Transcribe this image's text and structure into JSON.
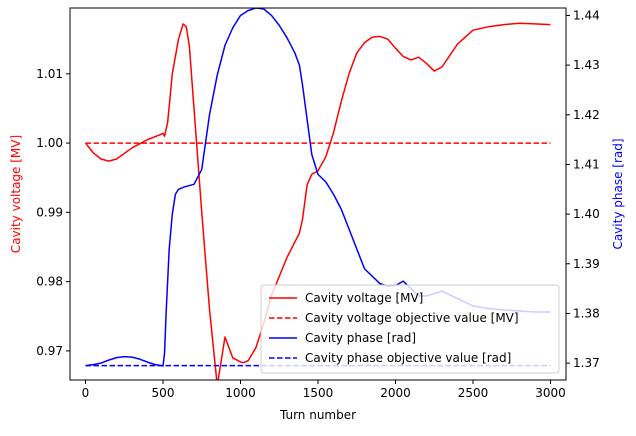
{
  "chart_data": {
    "type": "line",
    "xlabel": "Turn number",
    "ylabel_left": "Cavity voltage [MV]",
    "ylabel_right": "Cavity phase [rad]",
    "xlim": [
      -100,
      3100
    ],
    "ylim_left": [
      0.9658,
      1.0195
    ],
    "ylim_right": [
      1.3666,
      1.4415
    ],
    "x_ticks": [
      0,
      500,
      1000,
      1500,
      2000,
      2500,
      3000
    ],
    "x_tick_labels": [
      "0",
      "500",
      "1000",
      "1500",
      "2000",
      "2500",
      "3000"
    ],
    "y_left_ticks": [
      0.97,
      0.98,
      0.99,
      1.0,
      1.01
    ],
    "y_left_tick_labels": [
      "0.97",
      "0.98",
      "0.99",
      "1.00",
      "1.01"
    ],
    "y_right_ticks": [
      1.37,
      1.38,
      1.39,
      1.4,
      1.41,
      1.42,
      1.43,
      1.44
    ],
    "y_right_tick_labels": [
      "1.37",
      "1.38",
      "1.39",
      "1.40",
      "1.41",
      "1.42",
      "1.43",
      "1.44"
    ],
    "colors": {
      "left_axis": "#ff0000",
      "right_axis": "#0000ff"
    },
    "legend_position": "lower-right",
    "series": [
      {
        "name": "Cavity voltage [MV]",
        "axis": "left",
        "color": "#ff0000",
        "dash": "solid",
        "x": [
          0,
          50,
          100,
          150,
          200,
          300,
          400,
          480,
          500,
          510,
          530,
          560,
          600,
          630,
          650,
          670,
          700,
          750,
          800,
          850,
          900,
          950,
          1000,
          1020,
          1050,
          1100,
          1150,
          1200,
          1300,
          1380,
          1400,
          1430,
          1460,
          1500,
          1550,
          1600,
          1650,
          1700,
          1750,
          1800,
          1850,
          1900,
          1950,
          2000,
          2050,
          2100,
          2150,
          2200,
          2250,
          2300,
          2400,
          2500,
          2600,
          2700,
          2800,
          2900,
          3000
        ],
        "y": [
          1.0,
          0.9986,
          0.9977,
          0.9974,
          0.9977,
          0.9993,
          1.0005,
          1.0012,
          1.0014,
          1.001,
          1.003,
          1.01,
          1.015,
          1.0172,
          1.0168,
          1.014,
          1.005,
          0.99,
          0.976,
          0.965,
          0.972,
          0.969,
          0.9684,
          0.9683,
          0.9686,
          0.9705,
          0.974,
          0.978,
          0.9835,
          0.987,
          0.989,
          0.994,
          0.9955,
          0.996,
          0.998,
          1.0015,
          1.006,
          1.01,
          1.013,
          1.0145,
          1.0153,
          1.0154,
          1.015,
          1.0137,
          1.0125,
          1.012,
          1.0124,
          1.0115,
          1.0104,
          1.011,
          1.0143,
          1.0163,
          1.0168,
          1.0171,
          1.0173,
          1.0172,
          1.0171
        ]
      },
      {
        "name": "Cavity voltage objective value [MV]",
        "axis": "left",
        "color": "#ff0000",
        "dash": "dashed",
        "x": [
          0,
          3000
        ],
        "y": [
          1.0,
          1.0
        ]
      },
      {
        "name": "Cavity phase [rad]",
        "axis": "right",
        "color": "#0000ff",
        "dash": "solid",
        "x": [
          0,
          50,
          100,
          150,
          200,
          250,
          300,
          350,
          400,
          450,
          490,
          500,
          510,
          520,
          540,
          560,
          580,
          600,
          640,
          700,
          750,
          800,
          850,
          900,
          950,
          1000,
          1050,
          1100,
          1150,
          1200,
          1250,
          1300,
          1350,
          1380,
          1400,
          1430,
          1460,
          1500,
          1550,
          1600,
          1650,
          1700,
          1800,
          1900,
          1950,
          2000,
          2050,
          2100,
          2150,
          2200,
          2250,
          2300,
          2400,
          2500,
          2600,
          2700,
          2800,
          2900,
          3000
        ],
        "y": [
          1.3695,
          1.3697,
          1.37,
          1.3706,
          1.3711,
          1.3713,
          1.3712,
          1.3708,
          1.3702,
          1.3697,
          1.3695,
          1.3694,
          1.372,
          1.38,
          1.393,
          1.4,
          1.404,
          1.405,
          1.4055,
          1.406,
          1.409,
          1.42,
          1.428,
          1.434,
          1.4375,
          1.44,
          1.441,
          1.4415,
          1.4413,
          1.44,
          1.438,
          1.4355,
          1.4325,
          1.43,
          1.426,
          1.419,
          1.412,
          1.408,
          1.4065,
          1.404,
          1.401,
          1.397,
          1.389,
          1.386,
          1.3855,
          1.3856,
          1.3865,
          1.385,
          1.3835,
          1.3835,
          1.384,
          1.3845,
          1.383,
          1.3815,
          1.381,
          1.3807,
          1.3805,
          1.3803,
          1.3803
        ]
      },
      {
        "name": "Cavity phase objective value [rad]",
        "axis": "right",
        "color": "#0000ff",
        "dash": "dashed",
        "x": [
          0,
          3000
        ],
        "y": [
          1.3695,
          1.3695
        ]
      }
    ]
  }
}
